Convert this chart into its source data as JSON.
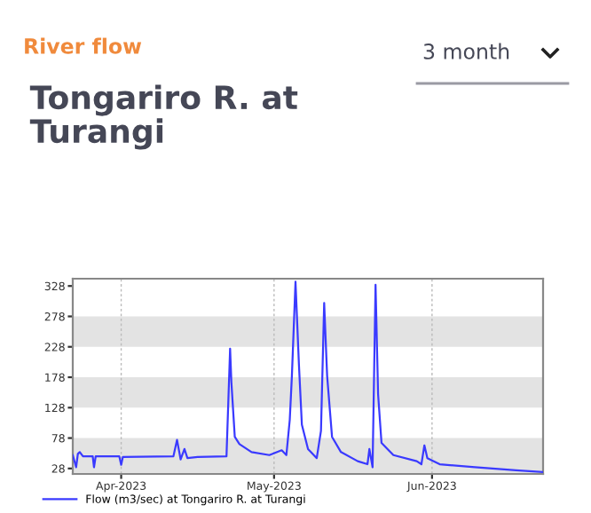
{
  "chart_data": {
    "type": "line",
    "subtitle": "River flow",
    "title": "Tongariro R. at Turangi",
    "annotations": [
      "3 month"
    ],
    "legend": "bottom left",
    "grid": "x",
    "x": [
      "2023-03-22T12:00",
      "2023-03-23T04:00",
      "2023-03-23T12:00",
      "2023-03-23T21:00",
      "2023-03-24T12:00",
      "2023-03-26T10:00",
      "2023-03-26T16:00",
      "2023-03-27T00:00",
      "2023-03-31T15:00",
      "2023-04-01T00:00",
      "2023-04-01T08:00",
      "2023-04-11T06:00",
      "2023-04-11T23:00",
      "2023-04-12T16:00",
      "2023-04-13T10:00",
      "2023-04-14T00:00",
      "2023-04-16T00:00",
      "2023-04-21T16:00",
      "2023-04-22T09:00",
      "2023-04-22T15:00",
      "2023-04-23T07:00",
      "2023-04-24T05:00",
      "2023-04-26T14:00",
      "2023-04-30T02:00",
      "2023-05-02T12:00",
      "2023-05-03T10:00",
      "2023-05-04T02:00",
      "2023-05-04T12:00",
      "2023-05-05T05:00",
      "2023-05-05T21:00",
      "2023-05-06T11:00",
      "2023-05-07T16:00",
      "2023-05-09T09:00",
      "2023-05-10T05:00",
      "2023-05-10T20:00",
      "2023-05-11T10:00",
      "2023-05-12T09:00",
      "2023-05-14T03:00",
      "2023-05-17T10:00",
      "2023-05-19T08:00",
      "2023-05-19T17:00",
      "2023-05-20T08:00",
      "2023-05-20T22:00",
      "2023-05-21T10:00",
      "2023-05-22T02:00",
      "2023-05-24T10:00",
      "2023-05-29T00:00",
      "2023-05-29T22:00",
      "2023-05-30T12:00",
      "2023-05-31T02:00",
      "2023-06-02T12:00",
      "2023-06-09T10:00",
      "2023-06-17T11:00",
      "2023-06-22T19:00"
    ],
    "series": [
      {
        "name": "Flow (m3/sec) at Tongariro R. at Turangi",
        "color": "#3a3aff",
        "values": [
          50,
          30,
          52,
          55,
          48,
          48,
          30,
          48,
          48,
          34,
          47,
          48,
          75,
          43,
          60,
          45,
          47,
          48,
          225,
          170,
          80,
          68,
          55,
          50,
          58,
          50,
          108,
          180,
          335,
          200,
          100,
          60,
          45,
          90,
          300,
          180,
          80,
          55,
          40,
          35,
          60,
          30,
          330,
          150,
          70,
          50,
          40,
          35,
          66,
          45,
          35,
          30,
          25,
          22
        ]
      }
    ],
    "xlim": [
      "2023-03-22T12:00",
      "2023-06-22T19:00"
    ],
    "xticks": [
      {
        "value": "2023-04-01",
        "label": "Apr-2023"
      },
      {
        "value": "2023-05-01",
        "label": "May-2023"
      },
      {
        "value": "2023-06-01",
        "label": "Jun-2023"
      }
    ],
    "ylim": [
      19,
      340
    ],
    "yticks": [
      28,
      78,
      128,
      178,
      228,
      278,
      328
    ],
    "bands": [
      {
        "axis": "y",
        "from": 19,
        "to": 78,
        "color": "#e3e3e3"
      },
      {
        "axis": "y",
        "from": 128,
        "to": 178,
        "color": "#e3e3e3"
      },
      {
        "axis": "y",
        "from": 228,
        "to": 278,
        "color": "#e3e3e3"
      }
    ]
  }
}
